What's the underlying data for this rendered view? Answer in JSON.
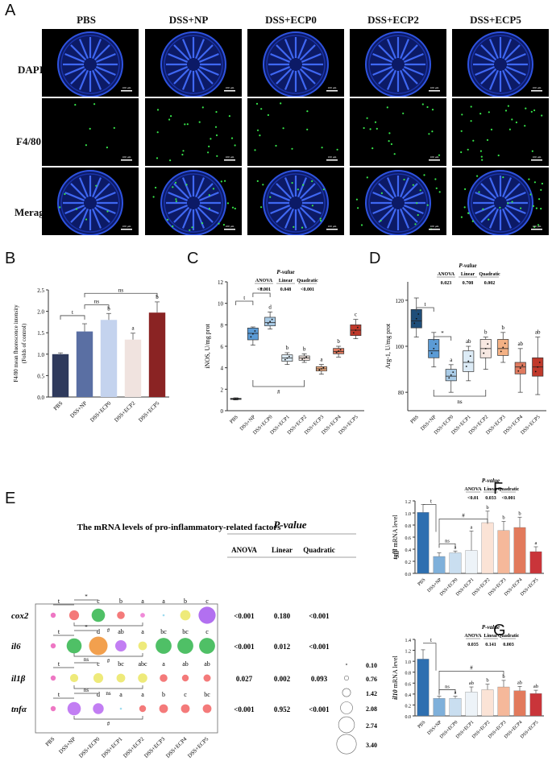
{
  "panels": {
    "A": "A",
    "B": "B",
    "C": "C",
    "D": "D",
    "E": "E",
    "F": "F",
    "G": "G"
  },
  "panel_a": {
    "groups": [
      "PBS",
      "DSS+NP",
      "DSS+ECP0",
      "DSS+ECP2",
      "DSS+ECP5"
    ],
    "rows": [
      "DAPI",
      "F4/80",
      "Merage"
    ],
    "scalebar_text": "100 μm"
  },
  "chart_data": [
    {
      "id": "B",
      "type": "bar",
      "ylabel": "F4/80 mean fluorescence intensity",
      "ylabel2": "(Folds of control)",
      "ylim": [
        0,
        2.5
      ],
      "yticks": [
        0.0,
        0.5,
        1.0,
        1.5,
        2.0,
        2.5
      ],
      "categories": [
        "PBS",
        "DSS+NP",
        "DSS+ECP0",
        "DSS+ECP2",
        "DSS+ECP5"
      ],
      "values": [
        1.0,
        1.53,
        1.8,
        1.34,
        1.97
      ],
      "errors": [
        0.03,
        0.18,
        0.15,
        0.15,
        0.25
      ],
      "letters": [
        "",
        "",
        "b",
        "a",
        "b"
      ],
      "colors": [
        "#2f3a5c",
        "#5a6fa3",
        "#c4d3ee",
        "#f0e3df",
        "#8a2323"
      ],
      "brackets": [
        {
          "from": 0,
          "to": 1,
          "label": "t"
        },
        {
          "from": 1,
          "to": 2,
          "label": "ns"
        },
        {
          "from": 1,
          "to": 4,
          "label": "ns"
        }
      ]
    },
    {
      "id": "C",
      "type": "box",
      "ylabel": "iNOS, U/mg prot",
      "ylim": [
        0,
        12
      ],
      "yticks": [
        0,
        2,
        4,
        6,
        8,
        10,
        12
      ],
      "categories": [
        "PBS",
        "DSS+NP",
        "DSS+ECP0",
        "DSS+ECP1",
        "DSS+ECP2",
        "DSS+ECP3",
        "DSS+ECP4",
        "DSS+ECP5"
      ],
      "boxes": [
        {
          "min": 1.0,
          "q1": 1.05,
          "med": 1.1,
          "q3": 1.15,
          "max": 1.2
        },
        {
          "min": 6.1,
          "q1": 6.6,
          "med": 7.2,
          "q3": 7.7,
          "max": 7.8
        },
        {
          "min": 7.6,
          "q1": 7.9,
          "med": 8.2,
          "q3": 8.7,
          "max": 9.2
        },
        {
          "min": 4.3,
          "q1": 4.6,
          "med": 4.9,
          "q3": 5.2,
          "max": 5.4
        },
        {
          "min": 4.5,
          "q1": 4.7,
          "med": 4.9,
          "q3": 5.1,
          "max": 5.3
        },
        {
          "min": 3.4,
          "q1": 3.7,
          "med": 3.9,
          "q3": 4.1,
          "max": 4.3
        },
        {
          "min": 5.0,
          "q1": 5.3,
          "med": 5.5,
          "q3": 5.8,
          "max": 6.0
        },
        {
          "min": 6.7,
          "q1": 7.0,
          "med": 7.5,
          "q3": 8.0,
          "max": 8.5
        }
      ],
      "colors": [
        "#1f4e79",
        "#5b9bd5",
        "#a9cbe6",
        "#dcebf6",
        "#f7e8e2",
        "#f4b184",
        "#e07a5f",
        "#c0392b"
      ],
      "letters": [
        "",
        "",
        "d",
        "b",
        "b",
        "a",
        "b",
        "c"
      ],
      "pvalue": {
        "title": "P-value",
        "headers": [
          "ANOVA",
          "Linear",
          "Quadratic"
        ],
        "values": [
          "<0.001",
          "0.048",
          "<0.001"
        ]
      },
      "brackets": [
        {
          "from": 0,
          "to": 1,
          "label": "t"
        },
        {
          "from": 1,
          "to": 2,
          "label": "*"
        }
      ],
      "bottom_bracket": {
        "label": "#"
      }
    },
    {
      "id": "D",
      "type": "box",
      "ylabel": "Arg-1, U/mg prot",
      "ylim": [
        72,
        128
      ],
      "yticks": [
        80,
        100,
        120
      ],
      "categories": [
        "PBS",
        "DSS+NP",
        "DSS+ECP0",
        "DSS+ECP1",
        "DSS+ECP2",
        "DSS+ECP3",
        "DSS+ECP4",
        "DSS+ECP5"
      ],
      "boxes": [
        {
          "min": 104,
          "q1": 108,
          "med": 111,
          "q3": 116,
          "max": 121
        },
        {
          "min": 91,
          "q1": 95,
          "med": 98,
          "q3": 103,
          "max": 106
        },
        {
          "min": 80,
          "q1": 85,
          "med": 87,
          "q3": 90,
          "max": 92
        },
        {
          "min": 85,
          "q1": 89,
          "med": 93,
          "q3": 98,
          "max": 100
        },
        {
          "min": 90,
          "q1": 95,
          "med": 99,
          "q3": 103,
          "max": 104
        },
        {
          "min": 93,
          "q1": 96,
          "med": 99,
          "q3": 103,
          "max": 106
        },
        {
          "min": 80,
          "q1": 88,
          "med": 91,
          "q3": 93,
          "max": 99
        },
        {
          "min": 79,
          "q1": 87,
          "med": 91,
          "q3": 95,
          "max": 104
        }
      ],
      "colors": [
        "#1f4e79",
        "#5b9bd5",
        "#a9cbe6",
        "#dcebf6",
        "#f7e8e2",
        "#f4b184",
        "#e07a5f",
        "#c0392b"
      ],
      "letters": [
        "",
        "",
        "a",
        "ab",
        "b",
        "b",
        "ab",
        "ab"
      ],
      "pvalue": {
        "title": "P-value",
        "headers": [
          "ANOVA",
          "Linear",
          "Quadratic"
        ],
        "values": [
          "0.023",
          "0.708",
          "0.002"
        ]
      },
      "brackets": [
        {
          "from": 0,
          "to": 1,
          "label": "t"
        },
        {
          "from": 1,
          "to": 2,
          "label": "*"
        }
      ],
      "bottom_bracket": {
        "label": "ns"
      }
    },
    {
      "id": "E",
      "type": "bubble",
      "title": "The mRNA levels of pro-inflammatory-related factors",
      "genes": [
        "cox2",
        "il6",
        "il1β",
        "tnfα"
      ],
      "categories": [
        "PBS",
        "DSS+NP",
        "DSS+ECP0",
        "DSS+ECP1",
        "DSS+ECP2",
        "DSS+ECP3",
        "DSS+ECP4",
        "DSS+ECP5"
      ],
      "sizes": [
        [
          1.0,
          1.9,
          2.6,
          1.5,
          0.9,
          0.4,
          2.0,
          3.3
        ],
        [
          1.0,
          2.9,
          3.6,
          2.2,
          1.7,
          3.1,
          3.1,
          3.1
        ],
        [
          1.0,
          1.6,
          1.9,
          1.7,
          1.8,
          1.5,
          1.3,
          1.4
        ],
        [
          1.0,
          2.6,
          2.1,
          0.4,
          1.3,
          1.7,
          1.7,
          1.7
        ]
      ],
      "colors": [
        [
          "#ee77c4",
          "#f47a7a",
          "#4fc066",
          "#f47a7a",
          "#f08ad8",
          "#9edcf0",
          "#eeea7a",
          "#b270f0"
        ],
        [
          "#ee77c4",
          "#4fc066",
          "#f2a04e",
          "#c27ef3",
          "#eeea7a",
          "#4fc066",
          "#4fc066",
          "#4fc066"
        ],
        [
          "#ee77c4",
          "#eeea7a",
          "#eeea7a",
          "#eeea7a",
          "#eeea7a",
          "#f47a7a",
          "#f47a7a",
          "#f47a7a"
        ],
        [
          "#ee77c4",
          "#c27ef3",
          "#c27ef3",
          "#9edcf0",
          "#f47a7a",
          "#f47a7a",
          "#f47a7a",
          "#f47a7a"
        ]
      ],
      "letters": [
        [
          "",
          "",
          "c",
          "b",
          "a",
          "a",
          "b",
          "c"
        ],
        [
          "",
          "",
          "d",
          "ab",
          "a",
          "bc",
          "bc",
          "c"
        ],
        [
          "",
          "",
          "c",
          "bc",
          "abc",
          "a",
          "ab",
          "ab"
        ],
        [
          "",
          "",
          "d",
          "a",
          "a",
          "b",
          "c",
          "bc"
        ]
      ],
      "marks": [
        {
          "t": "t",
          "star": "*",
          "hash": "#"
        },
        {
          "t": "t",
          "star": "*",
          "hash": "#"
        },
        {
          "t": "t",
          "star": "ns",
          "hash": "ns"
        },
        {
          "t": "t",
          "star": "ns",
          "hash": "#"
        }
      ],
      "pvalue": {
        "title": "P-value",
        "headers": [
          "ANOVA",
          "Linear",
          "Quadratic"
        ],
        "rows": [
          [
            "<0.001",
            "0.180",
            "<0.001"
          ],
          [
            "<0.001",
            "0.012",
            "<0.001"
          ],
          [
            "0.027",
            "0.002",
            "0.093"
          ],
          [
            "<0.001",
            "0.952",
            "<0.001"
          ]
        ]
      },
      "size_legend": [
        "0.10",
        "0.76",
        "1.42",
        "2.08",
        "2.74",
        "3.40"
      ]
    },
    {
      "id": "F",
      "type": "bar",
      "ylabel_italic": "tgfβ",
      "ylabel_rest": " mRNA level",
      "ylim": [
        0,
        1.2
      ],
      "yticks": [
        0.0,
        0.2,
        0.4,
        0.6,
        0.8,
        1.0,
        1.2
      ],
      "categories": [
        "PBS",
        "DSS+NP",
        "DSS+ECP0",
        "DSS+ECP1",
        "DSS+ECP2",
        "DSS+ECP3",
        "DSS+ECP4",
        "DSS+ECP5"
      ],
      "values": [
        1.01,
        0.28,
        0.34,
        0.38,
        0.84,
        0.71,
        0.76,
        0.36
      ],
      "errors": [
        0.13,
        0.06,
        0.03,
        0.32,
        0.19,
        0.15,
        0.17,
        0.08
      ],
      "colors": [
        "#2e6fb0",
        "#7fb0da",
        "#c9def0",
        "#edf3f8",
        "#fbe3d6",
        "#f5b89a",
        "#e27a5c",
        "#c9353a"
      ],
      "letters": [
        "",
        "",
        "a",
        "a",
        "b",
        "b",
        "b",
        "a"
      ],
      "pvalue": {
        "title": "P-value",
        "headers": [
          "ANOVA",
          "Linear",
          "Quadratic"
        ],
        "values": [
          "<0.01",
          "0.033",
          "<0.001"
        ]
      },
      "brackets": [
        {
          "from": 0,
          "to": 1,
          "label": "t"
        },
        {
          "from": 1,
          "to": 2,
          "label": "ns"
        }
      ],
      "hash_bracket": {
        "from": 1,
        "to": 4,
        "label": "#"
      }
    },
    {
      "id": "G",
      "type": "bar",
      "ylabel_italic": "il10",
      "ylabel_rest": " mRNA level",
      "ylim": [
        0,
        1.4
      ],
      "yticks": [
        0.0,
        0.2,
        0.4,
        0.6,
        0.8,
        1.0,
        1.2,
        1.4
      ],
      "categories": [
        "PBS",
        "DSS+NP",
        "DSS+ECP0",
        "DSS+ECP1",
        "DSS+ECP2",
        "DSS+ECP3",
        "DSS+ECP4",
        "DSS+ECP5"
      ],
      "values": [
        1.04,
        0.32,
        0.32,
        0.44,
        0.48,
        0.53,
        0.46,
        0.41
      ],
      "errors": [
        0.17,
        0.04,
        0.04,
        0.09,
        0.1,
        0.12,
        0.08,
        0.06
      ],
      "colors": [
        "#2e6fb0",
        "#7fb0da",
        "#c9def0",
        "#edf3f8",
        "#fbe3d6",
        "#f5b89a",
        "#e27a5c",
        "#c9353a"
      ],
      "letters": [
        "",
        "",
        "a",
        "ab",
        "b",
        "b",
        "ab",
        "ab"
      ],
      "pvalue": {
        "title": "P-value",
        "headers": [
          "ANOVA",
          "Linear",
          "Quadratic"
        ],
        "values": [
          "0.035",
          "0.141",
          "0.003"
        ]
      },
      "brackets": [
        {
          "from": 0,
          "to": 1,
          "label": "t"
        },
        {
          "from": 1,
          "to": 2,
          "label": "ns"
        }
      ],
      "hash_bracket": {
        "from": 1,
        "to": 5,
        "label": "#"
      }
    }
  ]
}
